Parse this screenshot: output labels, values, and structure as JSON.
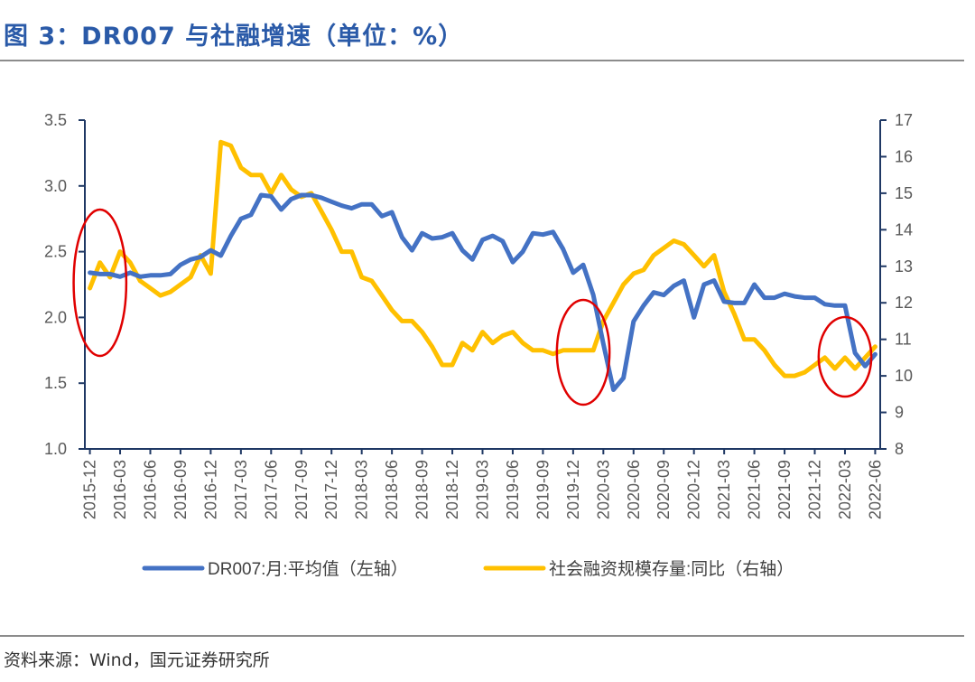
{
  "header": {
    "title": "图 3：DR007 与社融增速（单位：%）"
  },
  "footer": {
    "source": "资料来源：Wind，国元证券研究所"
  },
  "chart_data": {
    "type": "line",
    "title": "",
    "x": [
      "2015-12",
      "2016-01",
      "2016-02",
      "2016-03",
      "2016-04",
      "2016-05",
      "2016-06",
      "2016-07",
      "2016-08",
      "2016-09",
      "2016-10",
      "2016-11",
      "2016-12",
      "2017-01",
      "2017-02",
      "2017-03",
      "2017-04",
      "2017-05",
      "2017-06",
      "2017-07",
      "2017-08",
      "2017-09",
      "2017-10",
      "2017-11",
      "2017-12",
      "2018-01",
      "2018-02",
      "2018-03",
      "2018-04",
      "2018-05",
      "2018-06",
      "2018-07",
      "2018-08",
      "2018-09",
      "2018-10",
      "2018-11",
      "2018-12",
      "2019-01",
      "2019-02",
      "2019-03",
      "2019-04",
      "2019-05",
      "2019-06",
      "2019-07",
      "2019-08",
      "2019-09",
      "2019-10",
      "2019-11",
      "2019-12",
      "2020-01",
      "2020-02",
      "2020-03",
      "2020-04",
      "2020-05",
      "2020-06",
      "2020-07",
      "2020-08",
      "2020-09",
      "2020-10",
      "2020-11",
      "2020-12",
      "2021-01",
      "2021-02",
      "2021-03",
      "2021-04",
      "2021-05",
      "2021-06",
      "2021-07",
      "2021-08",
      "2021-09",
      "2021-10",
      "2021-11",
      "2021-12",
      "2022-01",
      "2022-02",
      "2022-03",
      "2022-04",
      "2022-05",
      "2022-06"
    ],
    "x_tick_labels": [
      "2015-12",
      "2016-03",
      "2016-06",
      "2016-09",
      "2016-12",
      "2017-03",
      "2017-06",
      "2017-09",
      "2017-12",
      "2018-03",
      "2018-06",
      "2018-09",
      "2018-12",
      "2019-03",
      "2019-06",
      "2019-09",
      "2019-12",
      "2020-03",
      "2020-06",
      "2020-09",
      "2020-12",
      "2021-03",
      "2021-06",
      "2021-09",
      "2021-12",
      "2022-03",
      "2022-06"
    ],
    "y_left": {
      "range": [
        1.0,
        3.5
      ],
      "ticks": [
        "1.0",
        "1.5",
        "2.0",
        "2.5",
        "3.0",
        "3.5"
      ]
    },
    "y_right": {
      "range": [
        8,
        17
      ],
      "ticks": [
        "8",
        "9",
        "10",
        "11",
        "12",
        "13",
        "14",
        "15",
        "16",
        "17"
      ]
    },
    "grid": false,
    "legend_position": "bottom",
    "series": [
      {
        "name": "DR007:月:平均值（左轴）",
        "axis": "left",
        "color": "#4472c4",
        "values": [
          2.34,
          2.33,
          2.33,
          2.31,
          2.34,
          2.31,
          2.32,
          2.32,
          2.33,
          2.4,
          2.44,
          2.46,
          2.51,
          2.47,
          2.62,
          2.75,
          2.78,
          2.93,
          2.92,
          2.82,
          2.9,
          2.93,
          2.93,
          2.91,
          2.88,
          2.85,
          2.83,
          2.86,
          2.86,
          2.77,
          2.8,
          2.61,
          2.51,
          2.64,
          2.6,
          2.61,
          2.64,
          2.51,
          2.44,
          2.59,
          2.62,
          2.58,
          2.42,
          2.5,
          2.64,
          2.63,
          2.65,
          2.52,
          2.34,
          2.4,
          2.17,
          1.8,
          1.45,
          1.54,
          1.97,
          2.09,
          2.19,
          2.17,
          2.24,
          2.28,
          2.0,
          2.25,
          2.28,
          2.12,
          2.11,
          2.11,
          2.25,
          2.15,
          2.15,
          2.18,
          2.16,
          2.15,
          2.15,
          2.1,
          2.09,
          2.09,
          1.73,
          1.63,
          1.72
        ]
      },
      {
        "name": "社会融资规模存量:同比（右轴）",
        "axis": "right",
        "color": "#ffc000",
        "values": [
          12.4,
          13.1,
          12.7,
          13.4,
          13.1,
          12.6,
          12.4,
          12.2,
          12.3,
          12.5,
          12.7,
          13.3,
          12.8,
          16.4,
          16.3,
          15.7,
          15.5,
          15.5,
          15.0,
          15.5,
          15.1,
          14.9,
          15.0,
          14.5,
          14.0,
          13.4,
          13.4,
          12.7,
          12.6,
          12.2,
          11.8,
          11.5,
          11.5,
          11.2,
          10.8,
          10.3,
          10.3,
          10.9,
          10.7,
          11.2,
          10.9,
          11.1,
          11.2,
          10.9,
          10.7,
          10.7,
          10.6,
          10.7,
          10.7,
          10.7,
          10.7,
          11.5,
          12.0,
          12.5,
          12.8,
          12.9,
          13.3,
          13.5,
          13.7,
          13.6,
          13.3,
          13.0,
          13.3,
          12.3,
          11.7,
          11.0,
          11.0,
          10.7,
          10.3,
          10.0,
          10.0,
          10.1,
          10.3,
          10.5,
          10.2,
          10.5,
          10.2,
          10.5,
          10.8
        ]
      }
    ]
  }
}
